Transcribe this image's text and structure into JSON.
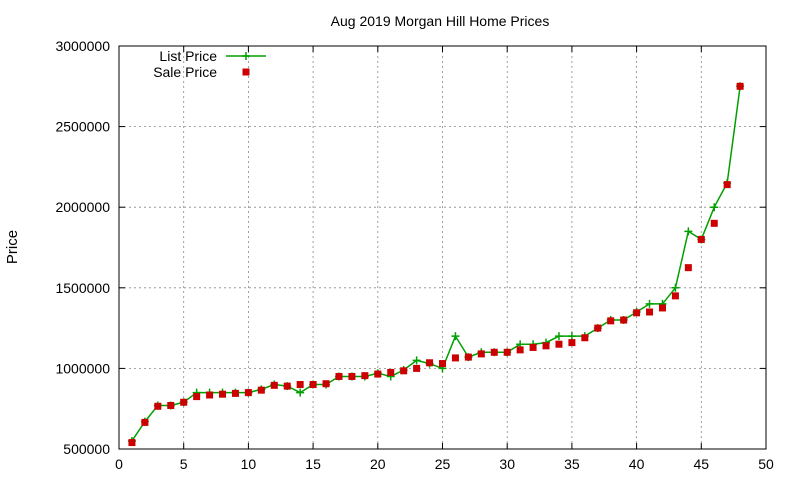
{
  "chart_data": {
    "type": "line",
    "title": "Aug 2019 Morgan Hill Home Prices",
    "xlabel": "",
    "ylabel": "Price",
    "xlim": [
      0,
      50
    ],
    "ylim": [
      500000,
      3000000
    ],
    "x_ticks": [
      "0",
      "5",
      "10",
      "15",
      "20",
      "25",
      "30",
      "35",
      "40",
      "45",
      "50"
    ],
    "y_ticks": [
      "500000",
      "1000000",
      "1500000",
      "2000000",
      "2500000",
      "3000000"
    ],
    "grid": true,
    "legend_position": "top-left",
    "x": [
      1,
      2,
      3,
      4,
      5,
      6,
      7,
      8,
      9,
      10,
      11,
      12,
      13,
      14,
      15,
      16,
      17,
      18,
      19,
      20,
      21,
      22,
      23,
      24,
      25,
      26,
      27,
      28,
      29,
      30,
      31,
      32,
      33,
      34,
      35,
      36,
      37,
      38,
      39,
      40,
      41,
      42,
      43,
      44,
      45,
      46,
      47,
      48
    ],
    "series": [
      {
        "name": "List Price",
        "style": "line+cross",
        "color": "#00a000",
        "values": [
          550000,
          670000,
          770000,
          770000,
          790000,
          850000,
          850000,
          850000,
          850000,
          850000,
          870000,
          900000,
          890000,
          850000,
          900000,
          900000,
          950000,
          950000,
          950000,
          970000,
          950000,
          990000,
          1050000,
          1030000,
          1000000,
          1200000,
          1070000,
          1100000,
          1100000,
          1100000,
          1150000,
          1150000,
          1160000,
          1200000,
          1200000,
          1200000,
          1250000,
          1300000,
          1300000,
          1350000,
          1400000,
          1400000,
          1500000,
          1850000,
          1800000,
          2000000,
          2150000,
          2750000
        ]
      },
      {
        "name": "Sale Price",
        "style": "square",
        "color": "#cc0000",
        "values": [
          540000,
          665000,
          765000,
          770000,
          790000,
          825000,
          835000,
          840000,
          845000,
          850000,
          865000,
          895000,
          890000,
          900000,
          900000,
          905000,
          950000,
          950000,
          955000,
          965000,
          975000,
          985000,
          1000000,
          1035000,
          1030000,
          1065000,
          1070000,
          1090000,
          1100000,
          1100000,
          1115000,
          1130000,
          1140000,
          1150000,
          1160000,
          1190000,
          1250000,
          1295000,
          1300000,
          1345000,
          1350000,
          1375000,
          1450000,
          1625000,
          1800000,
          1900000,
          2140000,
          2750000
        ]
      }
    ]
  }
}
